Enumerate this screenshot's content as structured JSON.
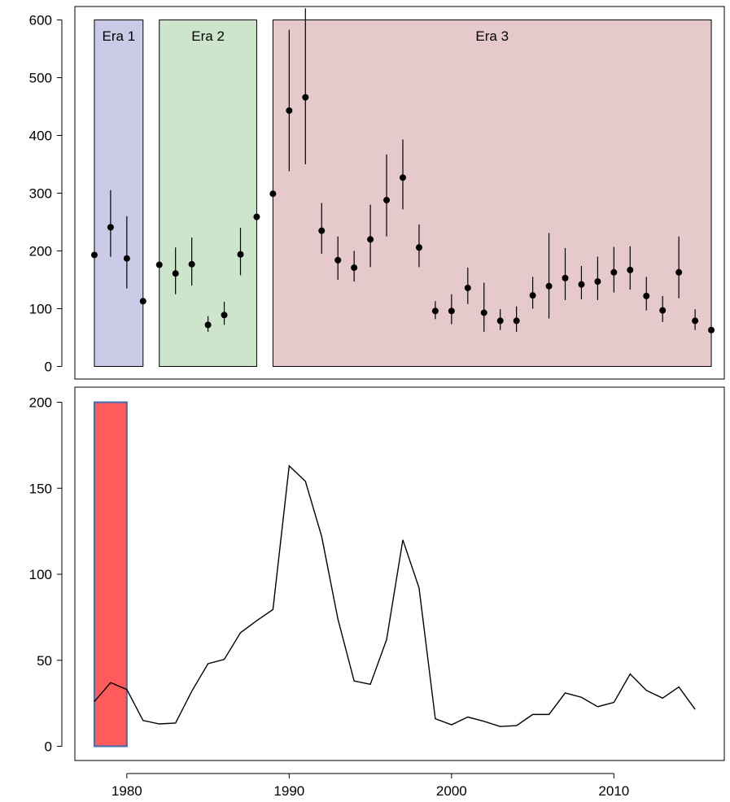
{
  "chart_data": [
    {
      "type": "scatter",
      "title": "",
      "xlabel": "",
      "ylabel": "",
      "xlim": [
        1977.2,
        1976.8
      ],
      "ylim": [
        -20,
        620
      ],
      "y_ticks": [
        0,
        100,
        200,
        300,
        400,
        500,
        600
      ],
      "eras": [
        {
          "label": "Era 1",
          "start": 1978,
          "end": 1981,
          "color": "#cbcae6"
        },
        {
          "label": "Era 2",
          "start": 1982,
          "end": 1988,
          "color": "#cde5ca"
        },
        {
          "label": "Era 3",
          "start": 1989,
          "end": 2016,
          "color": "#e6c9cb"
        }
      ],
      "series": [
        {
          "points": [
            {
              "x": 1978,
              "y": 193,
              "lo": 193,
              "hi": 193
            },
            {
              "x": 1979,
              "y": 241,
              "lo": 190,
              "hi": 305
            },
            {
              "x": 1980,
              "y": 187,
              "lo": 135,
              "hi": 260
            },
            {
              "x": 1981,
              "y": 113,
              "lo": 113,
              "hi": 113
            },
            {
              "x": 1982,
              "y": 176,
              "lo": 176,
              "hi": 176
            },
            {
              "x": 1983,
              "y": 161,
              "lo": 125,
              "hi": 206
            },
            {
              "x": 1984,
              "y": 177,
              "lo": 140,
              "hi": 223
            },
            {
              "x": 1985,
              "y": 72,
              "lo": 60,
              "hi": 87
            },
            {
              "x": 1986,
              "y": 89,
              "lo": 72,
              "hi": 112
            },
            {
              "x": 1987,
              "y": 194,
              "lo": 158,
              "hi": 240
            },
            {
              "x": 1988,
              "y": 259,
              "lo": 259,
              "hi": 259
            },
            {
              "x": 1989,
              "y": 299,
              "lo": 299,
              "hi": 299
            },
            {
              "x": 1990,
              "y": 443,
              "lo": 338,
              "hi": 583
            },
            {
              "x": 1991,
              "y": 466,
              "lo": 350,
              "hi": 620
            },
            {
              "x": 1992,
              "y": 235,
              "lo": 195,
              "hi": 283
            },
            {
              "x": 1993,
              "y": 184,
              "lo": 150,
              "hi": 225
            },
            {
              "x": 1994,
              "y": 171,
              "lo": 147,
              "hi": 200
            },
            {
              "x": 1995,
              "y": 220,
              "lo": 172,
              "hi": 280
            },
            {
              "x": 1996,
              "y": 288,
              "lo": 225,
              "hi": 367
            },
            {
              "x": 1997,
              "y": 327,
              "lo": 272,
              "hi": 393
            },
            {
              "x": 1998,
              "y": 206,
              "lo": 172,
              "hi": 246
            },
            {
              "x": 1999,
              "y": 96,
              "lo": 82,
              "hi": 113
            },
            {
              "x": 2000,
              "y": 96,
              "lo": 73,
              "hi": 125
            },
            {
              "x": 2001,
              "y": 136,
              "lo": 108,
              "hi": 171
            },
            {
              "x": 2002,
              "y": 93,
              "lo": 60,
              "hi": 145
            },
            {
              "x": 2003,
              "y": 79,
              "lo": 63,
              "hi": 99
            },
            {
              "x": 2004,
              "y": 79,
              "lo": 60,
              "hi": 104
            },
            {
              "x": 2005,
              "y": 123,
              "lo": 100,
              "hi": 155
            },
            {
              "x": 2006,
              "y": 139,
              "lo": 83,
              "hi": 231
            },
            {
              "x": 2007,
              "y": 153,
              "lo": 115,
              "hi": 205
            },
            {
              "x": 2008,
              "y": 142,
              "lo": 116,
              "hi": 174
            },
            {
              "x": 2009,
              "y": 147,
              "lo": 115,
              "hi": 190
            },
            {
              "x": 2010,
              "y": 163,
              "lo": 128,
              "hi": 207
            },
            {
              "x": 2011,
              "y": 167,
              "lo": 133,
              "hi": 208
            },
            {
              "x": 2012,
              "y": 122,
              "lo": 97,
              "hi": 155
            },
            {
              "x": 2013,
              "y": 97,
              "lo": 77,
              "hi": 122
            },
            {
              "x": 2014,
              "y": 163,
              "lo": 118,
              "hi": 225
            },
            {
              "x": 2015,
              "y": 79,
              "lo": 63,
              "hi": 99
            },
            {
              "x": 2016,
              "y": 63,
              "lo": 63,
              "hi": 63
            }
          ]
        }
      ]
    },
    {
      "type": "line",
      "title": "",
      "xlabel": "",
      "ylabel": "",
      "ylim": [
        -7,
        207
      ],
      "y_ticks": [
        0,
        50,
        100,
        150,
        200
      ],
      "x_ticks": [
        1980,
        1990,
        2000,
        2010
      ],
      "highlight": {
        "start": 1978,
        "end": 1980,
        "y_start": 0,
        "y_end": 200,
        "color": "#ff5b5b",
        "border": "#3e6eb4"
      },
      "series": [
        {
          "x": [
            1978,
            1979,
            1980,
            1981,
            1982,
            1983,
            1984,
            1985,
            1986,
            1987,
            1988,
            1989,
            1990,
            1991,
            1992,
            1993,
            1994,
            1995,
            1996,
            1997,
            1998,
            1999,
            2000,
            2001,
            2002,
            2003,
            2004,
            2005,
            2006,
            2007,
            2008,
            2009,
            2010,
            2011,
            2012,
            2013,
            2014,
            2015
          ],
          "y": [
            26,
            37,
            33,
            15,
            13,
            13.5,
            32,
            48,
            50.5,
            66,
            73,
            79.5,
            163,
            154,
            122,
            74,
            38,
            36,
            62,
            120,
            92,
            16,
            12.5,
            17,
            14.5,
            11.5,
            12,
            18.5,
            18.5,
            31,
            28.5,
            23,
            25.5,
            42,
            32.5,
            28,
            34.5,
            21.5
          ]
        }
      ]
    }
  ]
}
